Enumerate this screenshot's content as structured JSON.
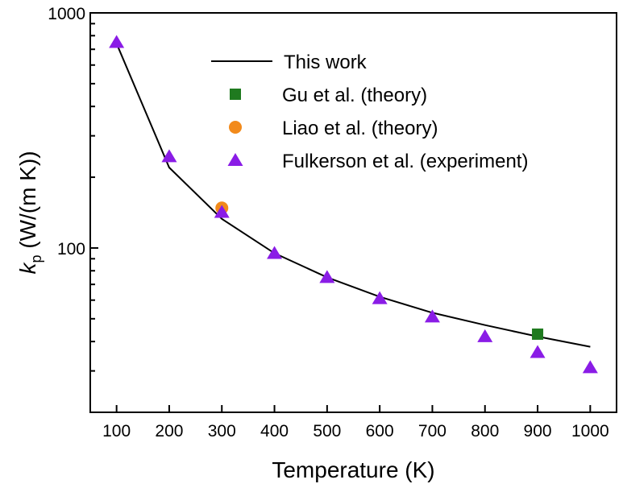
{
  "chart_data": {
    "type": "scatter",
    "xlabel": "Temperature (K)",
    "ylabel": {
      "symbol": "k",
      "subscript": "p",
      "unit": " (W/(m K))"
    },
    "xlim": [
      50,
      1050
    ],
    "ylim": [
      20,
      1000
    ],
    "yscale": "log",
    "xticks": [
      100,
      200,
      300,
      400,
      500,
      600,
      700,
      800,
      900,
      1000
    ],
    "yticks": [
      100,
      1000
    ],
    "grid": false,
    "legend_position": "top-right",
    "series": [
      {
        "name": "This work",
        "marker": "line",
        "color": "#000000",
        "x": [
          100,
          200,
          300,
          400,
          500,
          600,
          700,
          800,
          900,
          1000
        ],
        "y": [
          740,
          220,
          133,
          95,
          75,
          62,
          53,
          47,
          42,
          38
        ]
      },
      {
        "name": "Gu et al. (theory)",
        "marker": "square",
        "color": "#1f7a1f",
        "x": [
          900
        ],
        "y": [
          43
        ]
      },
      {
        "name": "Liao et al. (theory)",
        "marker": "circle",
        "color": "#f28a1b",
        "x": [
          300
        ],
        "y": [
          148
        ]
      },
      {
        "name": "Fulkerson et al. (experiment)",
        "marker": "triangle",
        "color": "#8a1ce6",
        "x": [
          100,
          200,
          300,
          400,
          500,
          600,
          700,
          800,
          900,
          1000
        ],
        "y": [
          750,
          245,
          142,
          95,
          75,
          61,
          51,
          42,
          36,
          31
        ]
      }
    ]
  }
}
